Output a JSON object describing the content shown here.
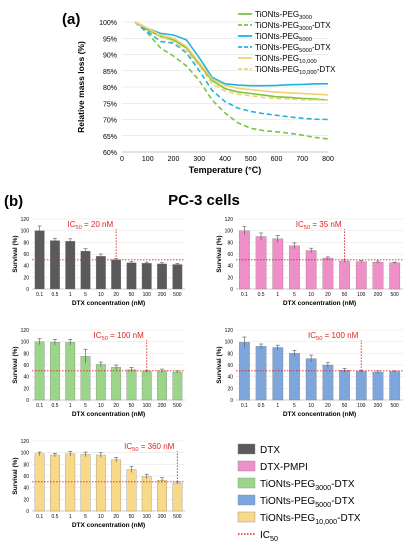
{
  "panel_a_label": "(a)",
  "panel_b_label": "(b)",
  "panel_b_title": "PC-3 cells",
  "chart_data": [
    {
      "type": "line",
      "panel": "(a)",
      "xlabel": "Temperature (°C)",
      "ylabel": "Relative mass loss (%)",
      "xlim": [
        0,
        800
      ],
      "ylim": [
        60,
        100
      ],
      "xticks": [
        "0",
        "100",
        "200",
        "300",
        "400",
        "500",
        "600",
        "700",
        "800"
      ],
      "yticks": [
        "60%",
        "65%",
        "70%",
        "75%",
        "80%",
        "85%",
        "90%",
        "95%",
        "100%"
      ],
      "legend_position": "right",
      "series": [
        {
          "name": "TiONts-PEG3000",
          "legend": {
            "main": "TiONts-PEG",
            "sub": "3000",
            "suffix": ""
          },
          "color": "#7cc443",
          "dash": "solid",
          "x": [
            50,
            100,
            150,
            200,
            250,
            300,
            350,
            400,
            450,
            500,
            550,
            600,
            650,
            700,
            750,
            800
          ],
          "y": [
            100,
            97.5,
            95.5,
            94.5,
            92,
            87,
            82,
            79.5,
            78.5,
            78,
            77.5,
            77,
            76.8,
            76.5,
            76.3,
            76
          ]
        },
        {
          "name": "TiONts-PEG3000-DTX",
          "legend": {
            "main": "TiONts-PEG",
            "sub": "3000",
            "suffix": "-DTX"
          },
          "color": "#7cc443",
          "dash": "dashed",
          "x": [
            50,
            100,
            150,
            200,
            250,
            300,
            350,
            400,
            450,
            500,
            550,
            600,
            650,
            700,
            750,
            800
          ],
          "y": [
            100,
            96.5,
            92,
            89.5,
            86.5,
            82,
            76,
            72,
            69,
            67.3,
            66.6,
            66.2,
            65.8,
            65.2,
            64.5,
            64
          ]
        },
        {
          "name": "TiONts-PEG5000",
          "legend": {
            "main": "TiONts-PEG",
            "sub": "5000",
            "suffix": ""
          },
          "color": "#1fb3e0",
          "dash": "solid",
          "x": [
            50,
            100,
            150,
            200,
            250,
            300,
            350,
            400,
            450,
            500,
            550,
            600,
            650,
            700,
            750,
            800
          ],
          "y": [
            100,
            98,
            96.5,
            96,
            94.5,
            89,
            83,
            81,
            80.6,
            80.4,
            80.4,
            80.5,
            80.7,
            80.8,
            81,
            81
          ]
        },
        {
          "name": "TiONts-PEG5000-DTX",
          "legend": {
            "main": "TiONts-PEG",
            "sub": "5000",
            "suffix": "-DTX"
          },
          "color": "#1fb3e0",
          "dash": "dashed",
          "x": [
            50,
            100,
            150,
            200,
            250,
            300,
            350,
            400,
            450,
            500,
            550,
            600,
            650,
            700,
            750,
            800
          ],
          "y": [
            100,
            97,
            94,
            93.5,
            90.5,
            85,
            79,
            75.5,
            73.5,
            72.5,
            71.8,
            71.3,
            70.8,
            70.4,
            70.1,
            70
          ]
        },
        {
          "name": "TiONts-PEG10,000",
          "legend": {
            "main": "TiONts-PEG",
            "sub": "10,000",
            "suffix": ""
          },
          "color": "#f5cf6b",
          "dash": "solid",
          "x": [
            50,
            100,
            150,
            200,
            250,
            300,
            350,
            400,
            450,
            500,
            550,
            600,
            650,
            700,
            750,
            800
          ],
          "y": [
            100,
            98,
            96,
            95,
            92.5,
            87.5,
            82.5,
            80.5,
            79.6,
            79.2,
            78.8,
            78.4,
            78.2,
            78,
            77.8,
            77.6
          ]
        },
        {
          "name": "TiONts-PEG10,000-DTX",
          "legend": {
            "main": "TiONts-PEG",
            "sub": "10,000",
            "suffix": "-DTX"
          },
          "color": "#f5cf6b",
          "dash": "dashed",
          "x": [
            50,
            100,
            150,
            200,
            250,
            300,
            350,
            400,
            450,
            500,
            550,
            600,
            650,
            700,
            750,
            800
          ],
          "y": [
            100,
            98,
            95.5,
            94,
            91,
            86.5,
            81,
            78.8,
            77.8,
            77.3,
            76.8,
            76.5,
            76.3,
            76.1,
            76,
            76
          ]
        }
      ]
    },
    {
      "type": "bar",
      "panel": "(b) DTX",
      "color": "#5a5a5a",
      "xlabel": "DTX concentration (nM)",
      "ylabel": "Survival (%)",
      "ylim": [
        0,
        120
      ],
      "yticks": [
        "0",
        "20",
        "40",
        "60",
        "80",
        "100",
        "120"
      ],
      "categories": [
        "0.1",
        "0.5",
        "1",
        "5",
        "10",
        "20",
        "50",
        "100",
        "200",
        "500"
      ],
      "values": [
        100,
        83,
        82,
        65,
        56,
        50,
        45,
        44,
        43,
        42
      ],
      "errors": [
        8,
        4,
        4,
        4,
        4,
        2,
        2,
        2,
        2,
        2
      ],
      "ic50_label": "IC50 = 20 nM",
      "ic50_category": "20",
      "ic50_level": 50
    },
    {
      "type": "bar",
      "panel": "(b) DTX-PMPI",
      "color": "#ef8fc8",
      "xlabel": "DTX concentration (nM)",
      "ylabel": "Survival (%)",
      "ylim": [
        0,
        120
      ],
      "yticks": [
        "0",
        "20",
        "40",
        "60",
        "80",
        "100",
        "120"
      ],
      "categories": [
        "0.1",
        "0.5",
        "1",
        "5",
        "10",
        "20",
        "50",
        "100",
        "200",
        "500"
      ],
      "values": [
        100,
        90,
        86,
        74,
        66,
        53,
        48,
        47,
        46,
        45
      ],
      "errors": [
        7,
        6,
        6,
        5,
        4,
        2,
        2,
        2,
        2,
        1
      ],
      "ic50_label": "IC50 = 35 nM",
      "ic50_category": "50",
      "ic50_level": 50
    },
    {
      "type": "bar",
      "panel": "(b) TiONts-PEG3000-DTX",
      "color": "#9ad58a",
      "xlabel": "DTX concentration (nM)",
      "ylabel": "Survival (%)",
      "ylim": [
        0,
        120
      ],
      "yticks": [
        "0",
        "20",
        "40",
        "60",
        "80",
        "100",
        "120"
      ],
      "categories": [
        "0.1",
        "0.5",
        "1",
        "5",
        "10",
        "20",
        "50",
        "100",
        "200",
        "500"
      ],
      "values": [
        100,
        99,
        99,
        75,
        61,
        56,
        52,
        49,
        50,
        48
      ],
      "errors": [
        5,
        5,
        5,
        12,
        4,
        4,
        4,
        2,
        3,
        2
      ],
      "ic50_label": "IC50 = 100 nM",
      "ic50_category": "100",
      "ic50_level": 50
    },
    {
      "type": "bar",
      "panel": "(b) TiONts-PEG5000-DTX",
      "color": "#7da7dc",
      "xlabel": "DTX concentration (nM)",
      "ylabel": "Survival (%)",
      "ylim": [
        0,
        120
      ],
      "yticks": [
        "0",
        "20",
        "40",
        "60",
        "80",
        "100",
        "120"
      ],
      "categories": [
        "0.1",
        "0.5",
        "1",
        "5",
        "10",
        "20",
        "50",
        "100",
        "200",
        "500"
      ],
      "values": [
        99,
        92,
        90,
        80,
        71,
        60,
        51,
        49,
        48,
        49
      ],
      "errors": [
        9,
        4,
        4,
        5,
        6,
        4,
        3,
        2,
        2,
        1
      ],
      "ic50_label": "IC50 = 100 nM",
      "ic50_category": "100",
      "ic50_level": 50
    },
    {
      "type": "bar",
      "panel": "(b) TiONts-PEG10,000-DTX",
      "color": "#f8d98a",
      "xlabel": "DTX concentration (nM)",
      "ylabel": "Survival (%)",
      "ylim": [
        0,
        120
      ],
      "yticks": [
        "0",
        "20",
        "40",
        "60",
        "80",
        "100",
        "120"
      ],
      "categories": [
        "0.1",
        "0.5",
        "1",
        "5",
        "10",
        "20",
        "50",
        "100",
        "200",
        "500"
      ],
      "values": [
        98,
        96,
        98,
        97,
        96,
        88,
        71,
        59,
        53,
        48
      ],
      "errors": [
        3,
        3,
        4,
        4,
        4,
        4,
        5,
        4,
        4,
        2
      ],
      "ic50_label": "IC50 = 360 nM",
      "ic50_category": "500",
      "ic50_level": 50
    }
  ],
  "legend_b": [
    {
      "label": "DTX",
      "main": "DTX",
      "sub": "",
      "suffix": "",
      "color": "#5a5a5a",
      "kind": "box"
    },
    {
      "label": "DTX-PMPI",
      "main": "DTX-PMPI",
      "sub": "",
      "suffix": "",
      "color": "#ef8fc8",
      "kind": "box"
    },
    {
      "label": "TiONts-PEG3000-DTX",
      "main": "TiONts-PEG",
      "sub": "3000",
      "suffix": "-DTX",
      "color": "#9ad58a",
      "kind": "box"
    },
    {
      "label": "TiONts-PEG5000-DTX",
      "main": "TiONts-PEG",
      "sub": "5000",
      "suffix": "-DTX",
      "color": "#7da7dc",
      "kind": "box"
    },
    {
      "label": "TiONts-PEG10,000-DTX",
      "main": "TiONts-PEG",
      "sub": "10,000",
      "suffix": "-DTX",
      "color": "#f8d98a",
      "kind": "box"
    },
    {
      "label": "IC50",
      "main": "IC",
      "sub": "50",
      "suffix": "",
      "color": "#e02020",
      "kind": "dots"
    }
  ]
}
